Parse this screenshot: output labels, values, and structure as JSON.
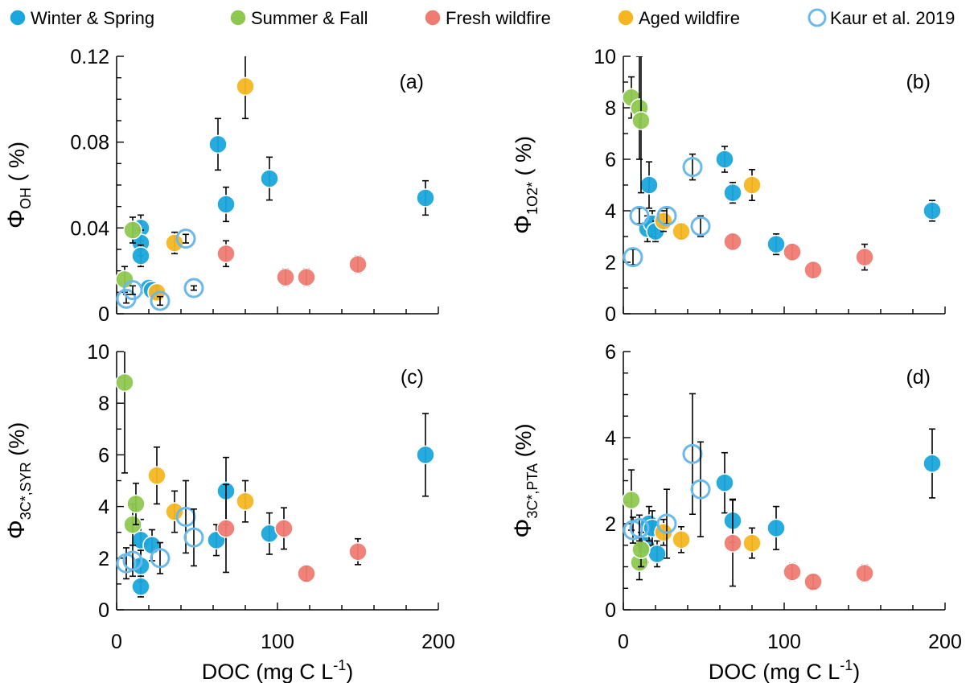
{
  "legend": [
    {
      "key": "ws",
      "name": "Winter & Spring",
      "color": "#1aa7dd",
      "hollow": false
    },
    {
      "key": "sf",
      "name": "Summer & Fall",
      "color": "#8fc84f",
      "hollow": false
    },
    {
      "key": "fw",
      "name": "Fresh wildfire",
      "color": "#ef7b73",
      "hollow": false
    },
    {
      "key": "aw",
      "name": "Aged wildfire",
      "color": "#f6b622",
      "hollow": false
    },
    {
      "key": "ka",
      "name": "Kaur et al. 2019",
      "color": "#6bb9ea",
      "hollow": true
    }
  ],
  "chart_data": [
    {
      "type": "scatter",
      "panel_label": "(a)",
      "ylabel_main": "Φ",
      "ylabel_sub": "OH",
      "ylabel_suffix": " ( %)",
      "xlabel_main": "",
      "xlabel_sup": "",
      "xlabel_tail": "",
      "xlim": [
        0,
        200
      ],
      "ylim": [
        0,
        0.12
      ],
      "xticks": [
        {
          "v": 0,
          "label": ""
        },
        {
          "v": 100,
          "label": ""
        },
        {
          "v": 200,
          "label": ""
        }
      ],
      "yticks": [
        {
          "v": 0,
          "label": "0"
        },
        {
          "v": 0.04,
          "label": "0.04"
        },
        {
          "v": 0.08,
          "label": "0.08"
        },
        {
          "v": 0.12,
          "label": "0.12"
        }
      ],
      "yminor": 0.01,
      "series": [
        {
          "key": "ws",
          "points": [
            [
              15,
              0.04,
              0.006
            ],
            [
              15,
              0.033,
              0.006
            ],
            [
              15,
              0.027,
              0.005
            ],
            [
              20,
              0.012,
              0.002
            ],
            [
              22,
              0.011,
              0.002
            ],
            [
              63,
              0.079,
              0.012
            ],
            [
              68,
              0.051,
              0.008
            ],
            [
              95,
              0.063,
              0.01
            ],
            [
              192,
              0.054,
              0.008
            ]
          ]
        },
        {
          "key": "sf",
          "points": [
            [
              5,
              0.016,
              0.006
            ],
            [
              10,
              0.039,
              0.006
            ]
          ]
        },
        {
          "key": "fw",
          "points": [
            [
              68,
              0.028,
              0.006
            ],
            [
              105,
              0.017,
              0.004
            ],
            [
              118,
              0.017,
              0.004
            ],
            [
              150,
              0.023,
              0.004
            ]
          ]
        },
        {
          "key": "aw",
          "points": [
            [
              25,
              0.01,
              0.003
            ],
            [
              36,
              0.033,
              0.005
            ],
            [
              80,
              0.106,
              0.015
            ]
          ]
        },
        {
          "key": "ka",
          "points": [
            [
              6,
              0.007,
              0.002
            ],
            [
              10,
              0.011,
              0.002
            ],
            [
              27,
              0.006,
              0.002
            ],
            [
              43,
              0.035,
              0.002
            ],
            [
              48,
              0.012,
              0.001
            ]
          ]
        }
      ]
    },
    {
      "type": "scatter",
      "panel_label": "(b)",
      "ylabel_main": "Φ",
      "ylabel_sub": "1O2*",
      "ylabel_suffix": " ( %)",
      "xlabel_main": "",
      "xlabel_sup": "",
      "xlabel_tail": "",
      "xlim": [
        0,
        200
      ],
      "ylim": [
        0,
        10
      ],
      "xticks": [
        {
          "v": 0,
          "label": ""
        },
        {
          "v": 100,
          "label": ""
        },
        {
          "v": 200,
          "label": ""
        }
      ],
      "yticks": [
        {
          "v": 0,
          "label": "0"
        },
        {
          "v": 2,
          "label": "2"
        },
        {
          "v": 4,
          "label": "4"
        },
        {
          "v": 6,
          "label": "6"
        },
        {
          "v": 8,
          "label": "8"
        },
        {
          "v": 10,
          "label": "10"
        }
      ],
      "yminor": 1,
      "series": [
        {
          "key": "ws",
          "points": [
            [
              15,
              3.3,
              0.5
            ],
            [
              16,
              5.0,
              0.9
            ],
            [
              18,
              3.5,
              0.5
            ],
            [
              20,
              3.2,
              0.4
            ],
            [
              63,
              6.0,
              0.5
            ],
            [
              68,
              4.7,
              0.4
            ],
            [
              95,
              2.7,
              0.4
            ],
            [
              192,
              4.0,
              0.4
            ]
          ]
        },
        {
          "key": "sf",
          "points": [
            [
              5,
              8.4,
              0.8
            ],
            [
              10,
              8.0,
              2.0
            ],
            [
              11,
              7.5,
              2.8
            ]
          ]
        },
        {
          "key": "fw",
          "points": [
            [
              68,
              2.8,
              0.3
            ],
            [
              105,
              2.4,
              0.3
            ],
            [
              118,
              1.7,
              0.3
            ],
            [
              150,
              2.2,
              0.5
            ]
          ]
        },
        {
          "key": "aw",
          "points": [
            [
              25,
              3.6,
              0.4
            ],
            [
              36,
              3.2,
              0.3
            ],
            [
              80,
              5.0,
              0.6
            ]
          ]
        },
        {
          "key": "ka",
          "points": [
            [
              6,
              2.2,
              0.3
            ],
            [
              10,
              3.8,
              0.3
            ],
            [
              27,
              3.8,
              0.3
            ],
            [
              43,
              5.7,
              0.5
            ],
            [
              48,
              3.4,
              0.4
            ]
          ]
        }
      ]
    },
    {
      "type": "scatter",
      "panel_label": "(c)",
      "ylabel_main": "Φ",
      "ylabel_sub": "3C*,SYR",
      "ylabel_suffix": " (%)",
      "xlabel_main": "DOC (mg C L",
      "xlabel_sup": "-1",
      "xlabel_tail": ")",
      "xlim": [
        0,
        200
      ],
      "ylim": [
        0,
        10
      ],
      "xticks": [
        {
          "v": 0,
          "label": "0"
        },
        {
          "v": 100,
          "label": "100"
        },
        {
          "v": 200,
          "label": "200"
        }
      ],
      "yticks": [
        {
          "v": 0,
          "label": "0"
        },
        {
          "v": 2,
          "label": "2"
        },
        {
          "v": 4,
          "label": "4"
        },
        {
          "v": 6,
          "label": "6"
        },
        {
          "v": 8,
          "label": "8"
        },
        {
          "v": 10,
          "label": "10"
        }
      ],
      "yminor": 1,
      "series": [
        {
          "key": "ws",
          "points": [
            [
              15,
              2.7,
              0.8
            ],
            [
              15,
              1.7,
              0.6
            ],
            [
              15,
              0.9,
              0.4
            ],
            [
              22,
              2.5,
              0.6
            ],
            [
              62,
              2.7,
              0.6
            ],
            [
              68,
              4.6,
              1.3
            ],
            [
              95,
              2.95,
              0.8
            ],
            [
              192,
              6.0,
              1.6
            ]
          ]
        },
        {
          "key": "sf",
          "points": [
            [
              5,
              8.8,
              3.5
            ],
            [
              10,
              3.3,
              0.8
            ],
            [
              12,
              4.1,
              0.8
            ]
          ]
        },
        {
          "key": "fw",
          "points": [
            [
              68,
              3.15,
              1.7
            ],
            [
              104,
              3.15,
              0.8
            ],
            [
              118,
              1.4,
              0.3
            ],
            [
              150,
              2.25,
              0.5
            ]
          ]
        },
        {
          "key": "aw",
          "points": [
            [
              25,
              5.2,
              1.1
            ],
            [
              36,
              3.8,
              0.8
            ],
            [
              80,
              4.2,
              0.8
            ]
          ]
        },
        {
          "key": "ka",
          "points": [
            [
              6,
              1.8,
              0.6
            ],
            [
              10,
              1.9,
              0.6
            ],
            [
              27,
              2.0,
              0.6
            ],
            [
              43,
              3.6,
              1.4
            ],
            [
              48,
              2.8,
              1.1
            ]
          ]
        }
      ]
    },
    {
      "type": "scatter",
      "panel_label": "(d)",
      "ylabel_main": "Φ",
      "ylabel_sub": "3C*,PTA",
      "ylabel_suffix": " (%)",
      "xlabel_main": "DOC (mg C L",
      "xlabel_sup": "-1",
      "xlabel_tail": ")",
      "xlim": [
        0,
        200
      ],
      "ylim": [
        0,
        6
      ],
      "xticks": [
        {
          "v": 0,
          "label": "0"
        },
        {
          "v": 100,
          "label": "100"
        },
        {
          "v": 200,
          "label": "200"
        }
      ],
      "yticks": [
        {
          "v": 0,
          "label": "0"
        },
        {
          "v": 2,
          "label": "2"
        },
        {
          "v": 4,
          "label": "4"
        },
        {
          "v": 6,
          "label": "6"
        }
      ],
      "yminor": 0.5,
      "series": [
        {
          "key": "ws",
          "points": [
            [
              14,
              1.5,
              0.4
            ],
            [
              16,
              2.0,
              0.4
            ],
            [
              18,
              1.9,
              0.4
            ],
            [
              21,
              1.3,
              0.3
            ],
            [
              63,
              2.95,
              0.7
            ],
            [
              68,
              2.07,
              0.5
            ],
            [
              95,
              1.9,
              0.5
            ],
            [
              192,
              3.4,
              0.8
            ]
          ]
        },
        {
          "key": "sf",
          "points": [
            [
              5,
              2.55,
              0.7
            ],
            [
              10,
              1.1,
              0.4
            ],
            [
              11,
              1.4,
              0.4
            ]
          ]
        },
        {
          "key": "fw",
          "points": [
            [
              68,
              1.55,
              1.0
            ],
            [
              105,
              0.88,
              0.2
            ],
            [
              118,
              0.65,
              0.15
            ],
            [
              150,
              0.85,
              0.2
            ]
          ]
        },
        {
          "key": "aw",
          "points": [
            [
              25,
              1.8,
              0.3
            ],
            [
              36,
              1.63,
              0.3
            ],
            [
              80,
              1.55,
              0.35
            ]
          ]
        },
        {
          "key": "ka",
          "points": [
            [
              6,
              1.85,
              0.3
            ],
            [
              10,
              1.9,
              0.3
            ],
            [
              27,
              2.0,
              0.8
            ],
            [
              43,
              3.62,
              1.4
            ],
            [
              48,
              2.8,
              1.1
            ]
          ]
        }
      ]
    }
  ]
}
